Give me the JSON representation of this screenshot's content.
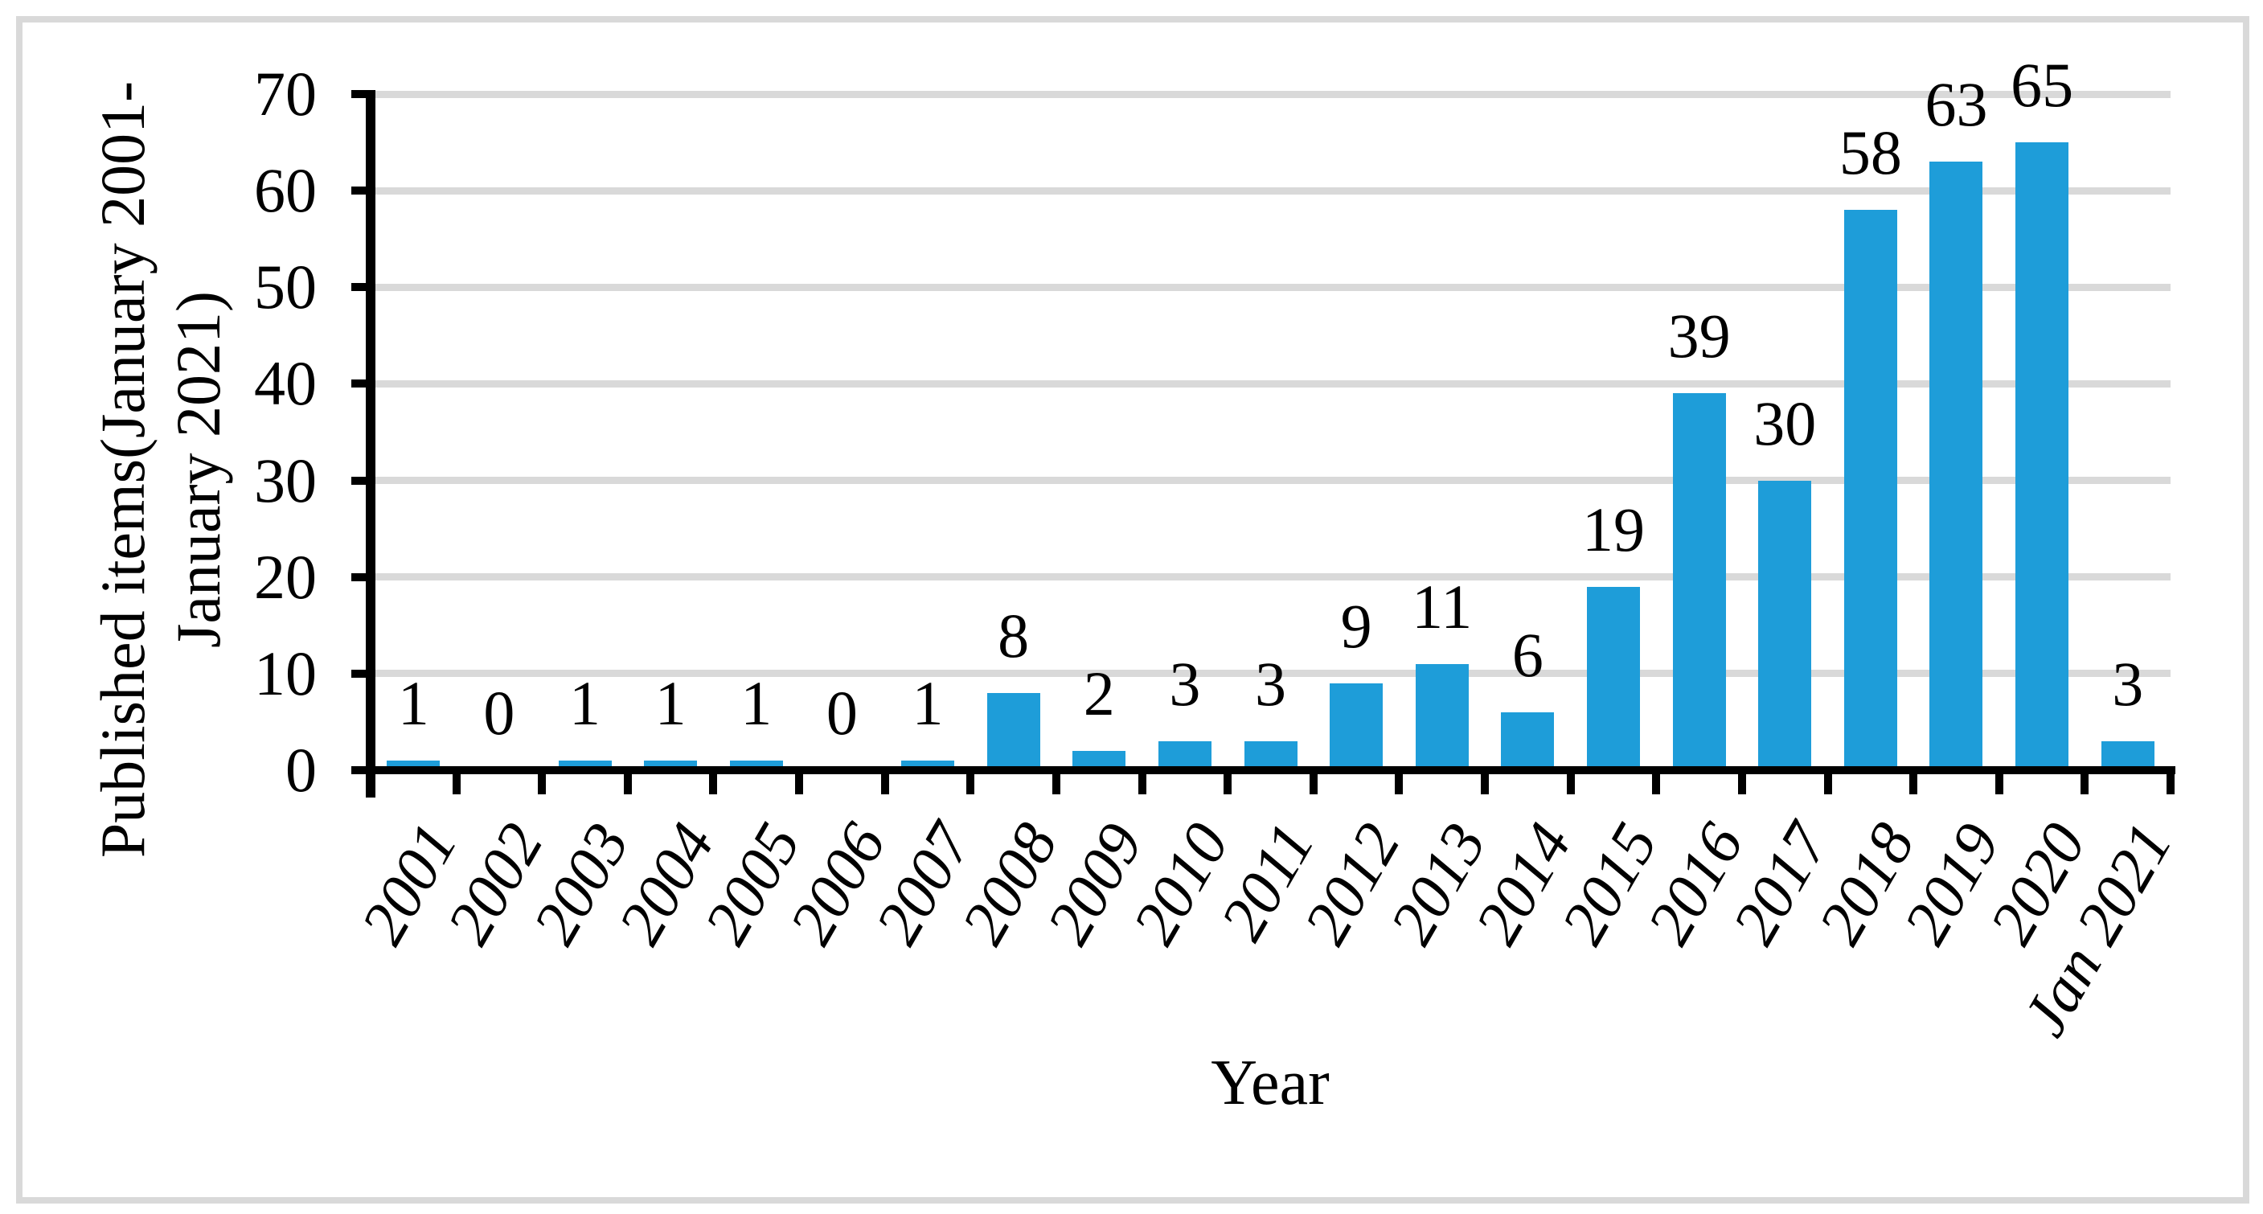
{
  "figure": {
    "background": "#FFFFFF",
    "border_color": "#D9D9D9"
  },
  "chart_data": {
    "type": "bar",
    "title": "",
    "categories": [
      "2001",
      "2002",
      "2003",
      "2004",
      "2005",
      "2006",
      "2007",
      "2008",
      "2009",
      "2010",
      "2011",
      "2012",
      "2013",
      "2014",
      "2015",
      "2016",
      "2017",
      "2018",
      "2019",
      "2020",
      "Jan 2021"
    ],
    "values": [
      1,
      0,
      1,
      1,
      1,
      0,
      1,
      8,
      2,
      3,
      3,
      9,
      11,
      6,
      19,
      39,
      30,
      58,
      63,
      65,
      3
    ],
    "xlabel": "Year",
    "ylabel": "Published items(January 2001-January 2021)",
    "ylabel_lines": [
      "Published items(January 2001-",
      "January 2021)"
    ],
    "ylim": [
      0,
      70
    ],
    "yticks": [
      0,
      10,
      20,
      30,
      40,
      50,
      60,
      70
    ],
    "grid": true,
    "legend": "none",
    "data_labels_shown": true,
    "bar_color": "#1E9DD9",
    "gridline_color": "#D9D9D9",
    "axis_color": "#000000",
    "label_color": "#000000"
  }
}
